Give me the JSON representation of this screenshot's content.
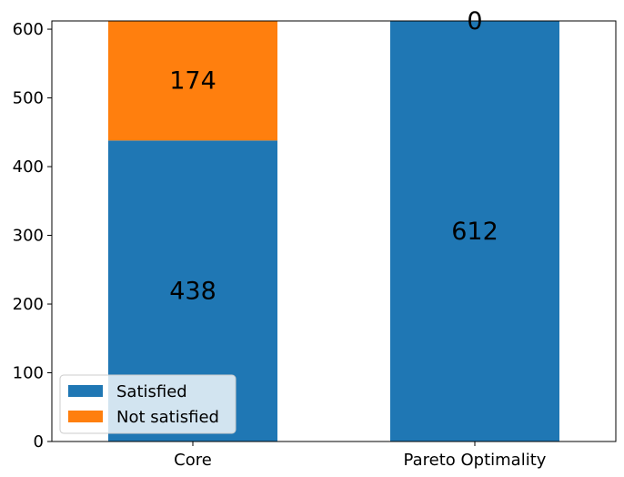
{
  "chart_data": {
    "type": "bar",
    "stacked": true,
    "categories": [
      "Core",
      "Pareto Optimality"
    ],
    "series": [
      {
        "name": "Satisfied",
        "values": [
          438,
          612
        ],
        "color": "#1f77b4"
      },
      {
        "name": "Not satisfied",
        "values": [
          174,
          0
        ],
        "color": "#ff7f0e"
      }
    ],
    "ylim": [
      0,
      612
    ],
    "yticks": [
      0,
      100,
      200,
      300,
      400,
      500,
      600
    ],
    "title": "",
    "xlabel": "",
    "ylabel": "",
    "legend_position": "bottom-left",
    "grid": false
  }
}
